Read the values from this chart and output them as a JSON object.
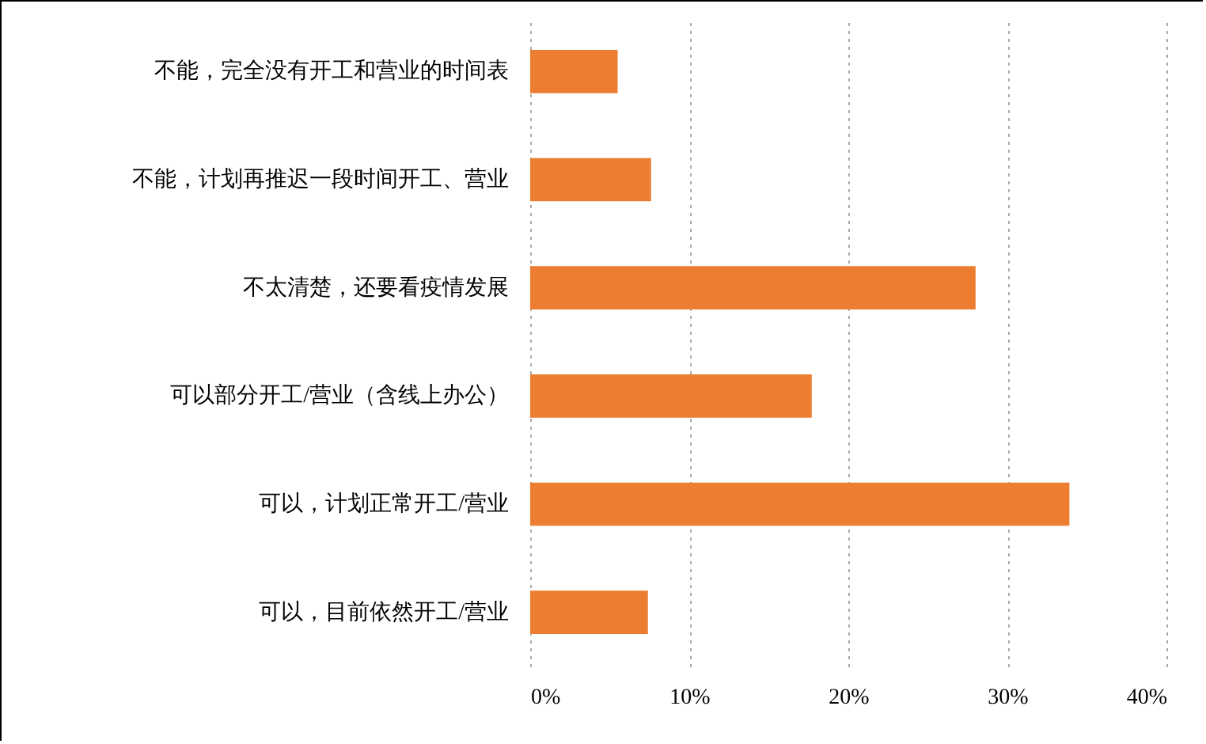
{
  "chart_data": {
    "type": "bar",
    "orientation": "horizontal",
    "categories": [
      "不能，完全没有开工和营业的时间表",
      "不能，计划再推迟一段时间开工、营业",
      "不太清楚，还要看疫情发展",
      "可以部分开工/营业（含线上办公）",
      "可以，计划正常开工/营业",
      "可以，目前依然开工/营业"
    ],
    "values": [
      5.5,
      7.6,
      28.0,
      17.7,
      33.9,
      7.4
    ],
    "color": "#ed7d31",
    "xlim": [
      0,
      40
    ],
    "xticks": [
      {
        "value": 0,
        "label": "0%"
      },
      {
        "value": 10,
        "label": "10%"
      },
      {
        "value": 20,
        "label": "20%"
      },
      {
        "value": 30,
        "label": "30%"
      },
      {
        "value": 40,
        "label": "40%"
      }
    ],
    "grid": "x"
  }
}
